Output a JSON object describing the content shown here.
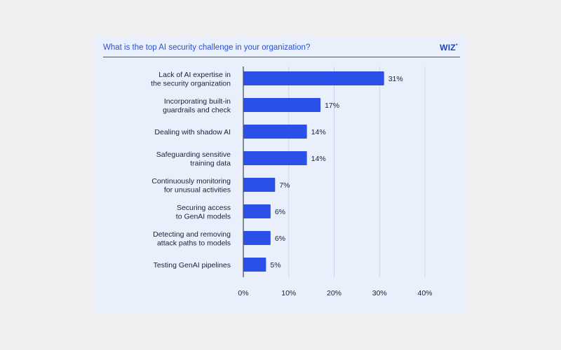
{
  "header": {
    "title": "What is the top AI security challenge in your organization?",
    "logo_text": "WIZ"
  },
  "colors": {
    "bar": "#2b50e8",
    "grid": "#c9d4ee",
    "card": "#eaf0fb",
    "accent": "#2b50d6"
  },
  "chart_data": {
    "type": "bar",
    "orientation": "horizontal",
    "title": "What is the top AI security challenge in your organization?",
    "categories": [
      [
        "Lack of AI expertise in",
        "the security organization"
      ],
      [
        "Incorporating built-in",
        "guardrails and check"
      ],
      [
        "Dealing with shadow AI"
      ],
      [
        "Safeguarding sensitive",
        "training data"
      ],
      [
        "Continuously monitoring",
        "for unusual activities"
      ],
      [
        "Securing access",
        "to GenAI models"
      ],
      [
        "Detecting and removing",
        "attack paths to models"
      ],
      [
        "Testing GenAI pipelines"
      ]
    ],
    "values": [
      31,
      17,
      14,
      14,
      7,
      6,
      6,
      5
    ],
    "value_labels": [
      "31%",
      "17%",
      "14%",
      "14%",
      "7%",
      "6%",
      "6%",
      "5%"
    ],
    "xlim": [
      0,
      40
    ],
    "xticks": [
      0,
      10,
      20,
      30,
      40
    ],
    "xtick_labels": [
      "0%",
      "10%",
      "20%",
      "30%",
      "40%"
    ],
    "grid": true
  }
}
